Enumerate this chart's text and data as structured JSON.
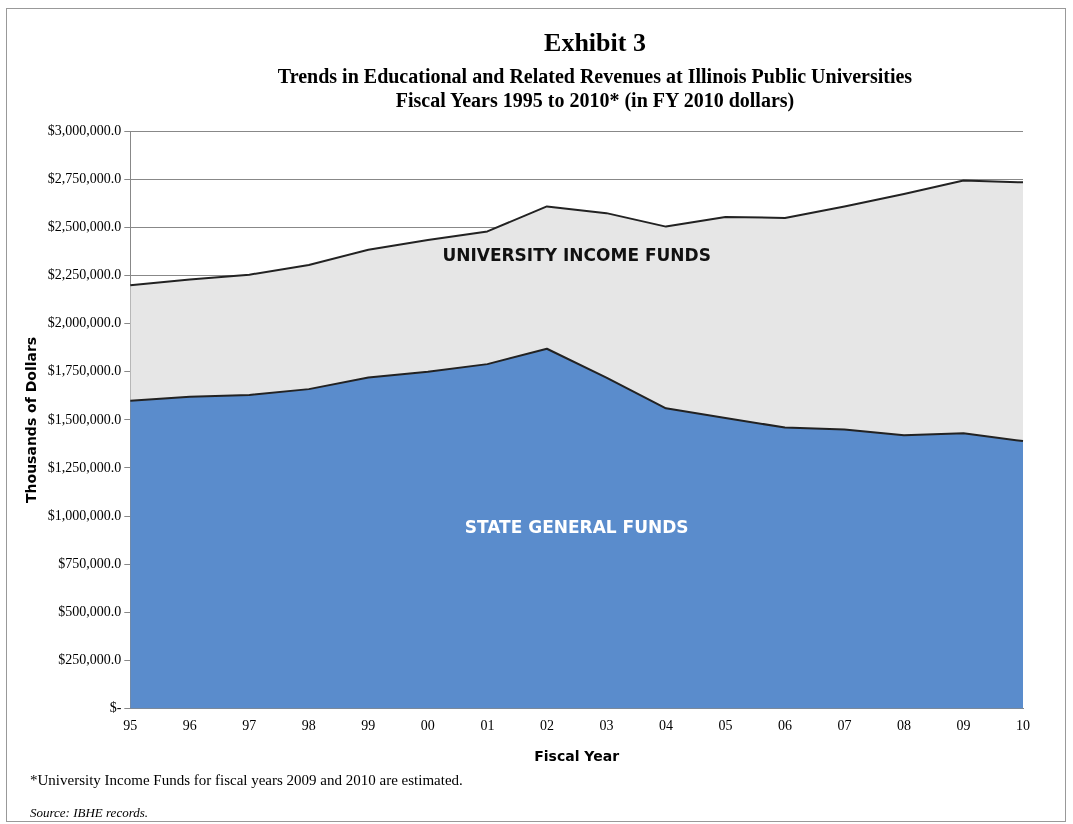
{
  "chart_data": {
    "type": "area",
    "title": "Exhibit 3",
    "subtitle": "Trends in Educational and Related Revenues at Illinois Public Universities\nFiscal Years 1995 to 2010* (in FY 2010 dollars)",
    "xlabel": "Fiscal Year",
    "ylabel": "Thousands of Dollars",
    "categories": [
      "95",
      "96",
      "97",
      "98",
      "99",
      "00",
      "01",
      "02",
      "03",
      "04",
      "05",
      "06",
      "07",
      "08",
      "09",
      "10"
    ],
    "stacked": true,
    "series": [
      {
        "name": "STATE GENERAL FUNDS",
        "color": "#5a8ccc",
        "values": [
          1600000,
          1620000,
          1630000,
          1660000,
          1720000,
          1750000,
          1790000,
          1870000,
          1720000,
          1560000,
          1510000,
          1460000,
          1450000,
          1420000,
          1430000,
          1390000
        ]
      },
      {
        "name": "UNIVERSITY INCOME FUNDS",
        "color": "#e6e6e6",
        "values": [
          600000,
          610000,
          625000,
          645000,
          665000,
          685000,
          690000,
          740000,
          855000,
          945000,
          1045000,
          1090000,
          1160000,
          1255000,
          1315000,
          1345000
        ]
      }
    ],
    "ylim": [
      0,
      3000000
    ],
    "yticks": [
      {
        "value": 0,
        "label": "$-"
      },
      {
        "value": 250000,
        "label": "$250,000.0"
      },
      {
        "value": 500000,
        "label": "$500,000.0"
      },
      {
        "value": 750000,
        "label": "$750,000.0"
      },
      {
        "value": 1000000,
        "label": "$1,000,000.0"
      },
      {
        "value": 1250000,
        "label": "$1,250,000.0"
      },
      {
        "value": 1500000,
        "label": "$1,500,000.0"
      },
      {
        "value": 1750000,
        "label": "$1,750,000.0"
      },
      {
        "value": 2000000,
        "label": "$2,000,000.0"
      },
      {
        "value": 2250000,
        "label": "$2,250,000.0"
      },
      {
        "value": 2500000,
        "label": "$2,500,000.0"
      },
      {
        "value": 2750000,
        "label": "$2,750,000.0"
      },
      {
        "value": 3000000,
        "label": "$3,000,000.0"
      }
    ],
    "grid": "y",
    "legend": false,
    "annotations": [
      "*University Income Funds for fiscal years 2009 and 2010 are estimated.",
      "Source: IBHE records."
    ]
  }
}
